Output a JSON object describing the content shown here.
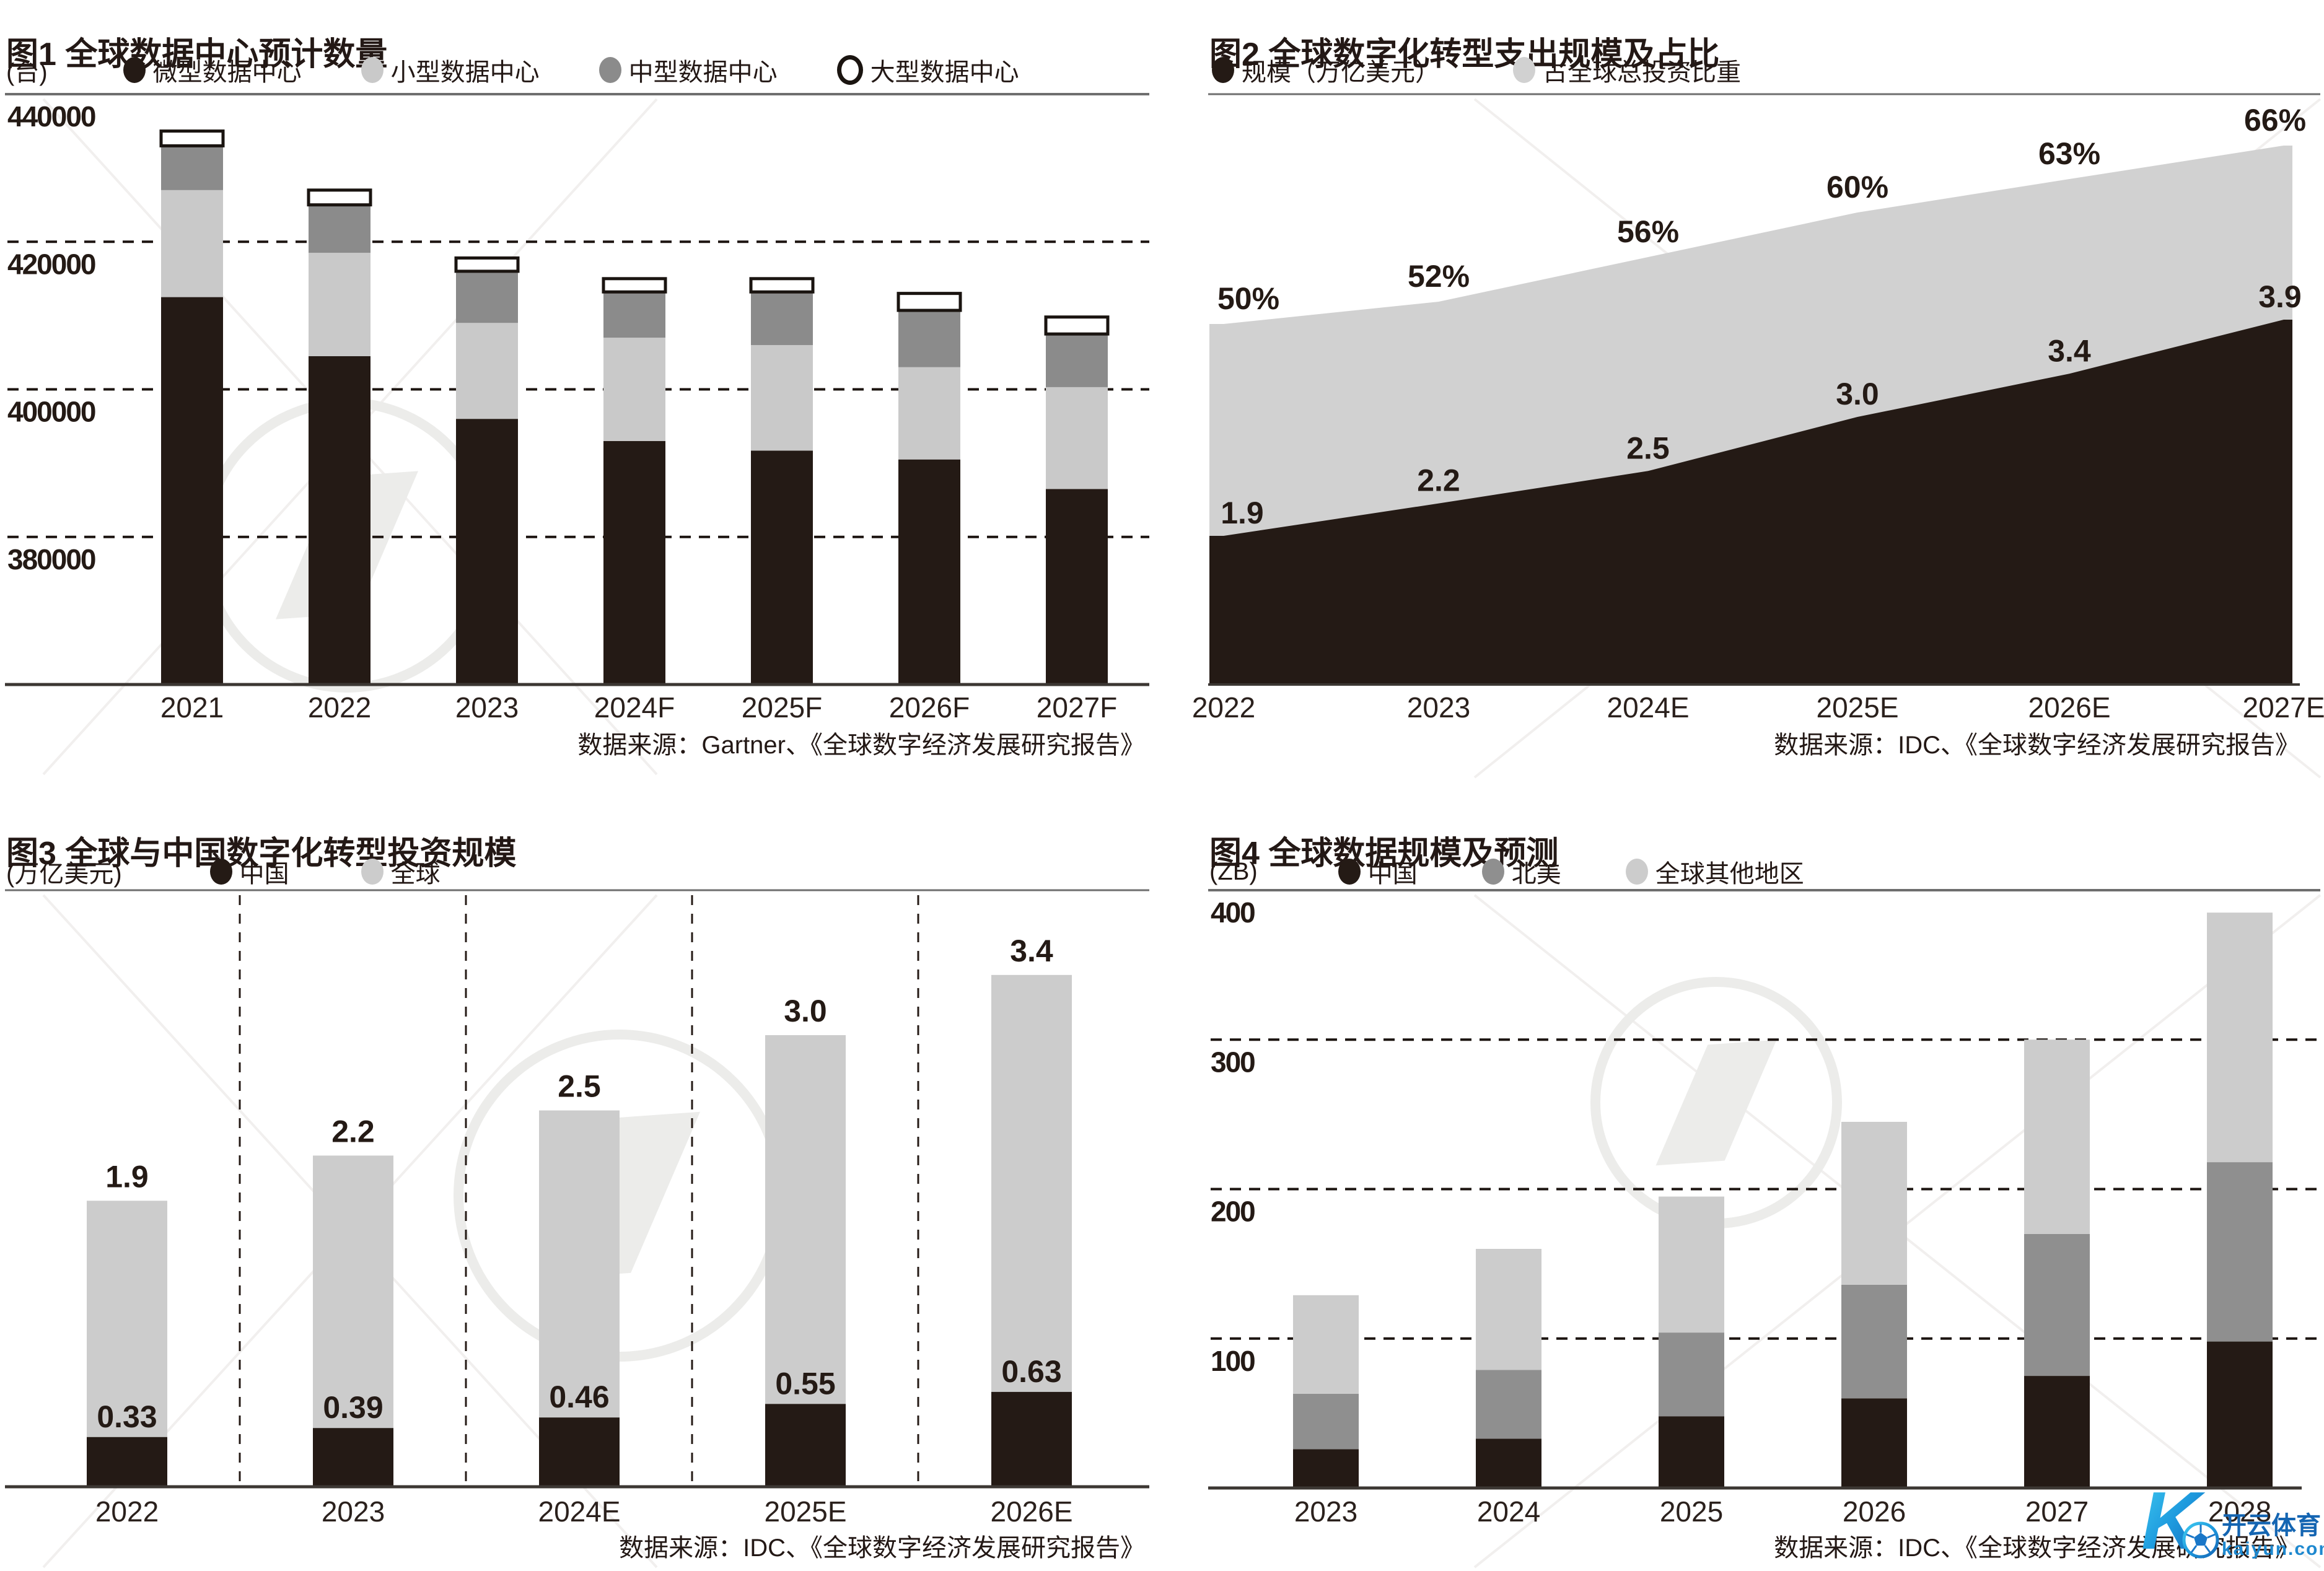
{
  "brand": {
    "k": "K",
    "name": "开云体育",
    "domain": "kaiyun.com",
    "cyan": "#3fc9f0",
    "blue": "#1464b4"
  },
  "panels": [
    {
      "title": "图1 全球数据中心预计数量",
      "unit": "(台)",
      "source": "数据来源：Gartner、《全球数字经济发展研究报告》",
      "legend": [
        {
          "label": "微型数据中心",
          "color": "#241a15",
          "style": "filled"
        },
        {
          "label": "小型数据中心",
          "color": "#c9c9c9",
          "style": "filled"
        },
        {
          "label": "中型数据中心",
          "color": "#8b8b8b",
          "style": "filled"
        },
        {
          "label": "大型数据中心",
          "color": "#ffffff",
          "style": "outline"
        }
      ],
      "chart_data": {
        "type": "bar",
        "stacked": true,
        "categories": [
          "2021",
          "2022",
          "2023",
          "2024F",
          "2025F",
          "2026F",
          "2027F"
        ],
        "series": [
          {
            "name": "微型数据中心",
            "color": "#241a15",
            "values": [
              412500,
              404500,
              396000,
              393000,
              391700,
              390500,
              386500
            ]
          },
          {
            "name": "小型数据中心",
            "color": "#c9c9c9",
            "values": [
              14500,
              14000,
              13000,
              14000,
              14300,
              12500,
              13800
            ]
          },
          {
            "name": "中型数据中心",
            "color": "#8b8b8b",
            "values": [
              6000,
              6500,
              7000,
              6200,
              7200,
              7700,
              7200
            ]
          },
          {
            "name": "大型数据中心",
            "color": "#ffffff",
            "values": [
              2000,
              2000,
              1800,
              1800,
              1800,
              2300,
              2300
            ]
          }
        ],
        "totals": [
          435000,
          427000,
          417800,
          415000,
          415000,
          413000,
          409800
        ],
        "ylabel": "台",
        "ymin": 360000,
        "ymax": 440000,
        "yticks": [
          "440000",
          "420000",
          "400000",
          "380000"
        ],
        "ytick_values": [
          440000,
          420000,
          400000,
          380000
        ],
        "grid": "dashed-horizontal"
      }
    },
    {
      "title": "图2 全球数字化转型支出规模及占比",
      "unit": "",
      "source": "数据来源：IDC、《全球数字经济发展研究报告》",
      "legend": [
        {
          "label": "规模（万亿美元）",
          "color": "#241a15",
          "style": "filled"
        },
        {
          "label": "占全球总投资比重",
          "color": "#d1d1d1",
          "style": "filled"
        }
      ],
      "chart_data": {
        "type": "area",
        "categories": [
          "2022",
          "2023",
          "2024E",
          "2025E",
          "2026E",
          "2027E"
        ],
        "series": [
          {
            "name": "规模（万亿美元）",
            "color": "#241a15",
            "values": [
              1.9,
              2.2,
              2.5,
              3.0,
              3.4,
              3.9
            ],
            "labels": [
              "1.9",
              "2.2",
              "2.5",
              "3.0",
              "3.4",
              "3.9"
            ]
          },
          {
            "name": "占全球总投资比重",
            "color": "#d1d1d1",
            "values": [
              50,
              52,
              56,
              60,
              63,
              66
            ],
            "labels": [
              "50%",
              "52%",
              "56%",
              "60%",
              "63%",
              "66%"
            ]
          }
        ],
        "legend_position": "top"
      }
    },
    {
      "title": "图3 全球与中国数字化转型投资规模",
      "unit": "(万亿美元)",
      "source": "数据来源：IDC、《全球数字经济发展研究报告》",
      "legend": [
        {
          "label": "中国",
          "color": "#241a15",
          "style": "filled"
        },
        {
          "label": "全球",
          "color": "#cccccc",
          "style": "filled"
        }
      ],
      "chart_data": {
        "type": "bar",
        "stacked": false,
        "categories": [
          "2022",
          "2023",
          "2024E",
          "2025E",
          "2026E"
        ],
        "series": [
          {
            "name": "全球",
            "color": "#cccccc",
            "values": [
              1.9,
              2.2,
              2.5,
              3.0,
              3.4
            ],
            "labels": [
              "1.9",
              "2.2",
              "2.5",
              "3.0",
              "3.4"
            ]
          },
          {
            "name": "中国",
            "color": "#241a15",
            "values": [
              0.33,
              0.39,
              0.46,
              0.55,
              0.63
            ],
            "labels": [
              "0.33",
              "0.39",
              "0.46",
              "0.55",
              "0.63"
            ]
          }
        ],
        "ymin": 0,
        "ymax": 3.9,
        "grid": "dashed-vertical-separators"
      }
    },
    {
      "title": "图4 全球数据规模及预测",
      "unit": "(ZB)",
      "source": "数据来源：IDC、《全球数字经济发展研究报告》",
      "legend": [
        {
          "label": "中国",
          "color": "#241a15",
          "style": "filled"
        },
        {
          "label": "北美",
          "color": "#8f8f8f",
          "style": "filled"
        },
        {
          "label": "全球其他地区",
          "color": "#cccccc",
          "style": "filled"
        }
      ],
      "chart_data": {
        "type": "bar",
        "stacked": true,
        "categories": [
          "2023",
          "2024",
          "2025",
          "2026",
          "2027",
          "2028"
        ],
        "series": [
          {
            "name": "中国",
            "color": "#241a15",
            "values": [
              26,
              33,
              48,
              60,
              75,
              98
            ]
          },
          {
            "name": "北美",
            "color": "#8f8f8f",
            "values": [
              37,
              46,
              56,
              76,
              95,
              120
            ]
          },
          {
            "name": "全球其他地区",
            "color": "#cccccc",
            "values": [
              66,
              81,
              91,
              109,
              130,
              167
            ]
          }
        ],
        "totals": [
          129,
          160,
          195,
          245,
          300,
          385
        ],
        "ymin": 0,
        "ymax": 400,
        "yticks": [
          "400",
          "300",
          "200",
          "100"
        ],
        "ytick_values": [
          400,
          300,
          200,
          100
        ],
        "grid": "dashed-horizontal"
      }
    }
  ]
}
